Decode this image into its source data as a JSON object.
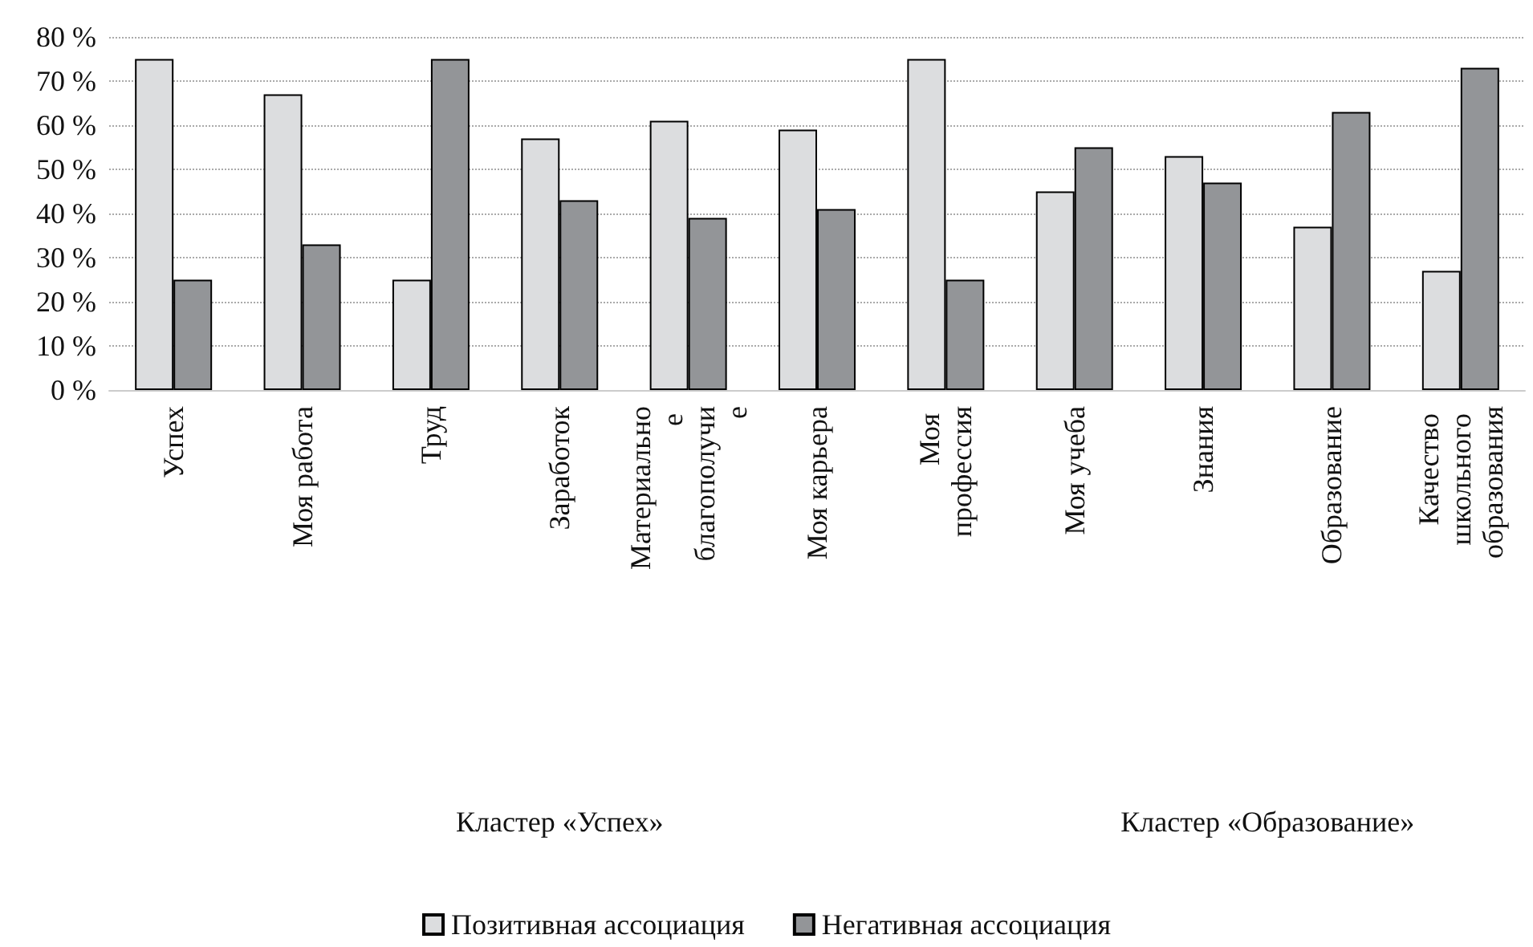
{
  "chart_data": {
    "type": "bar",
    "categories": [
      "Успех",
      "Моя работа",
      "Труд",
      "Заработок",
      "Материальное благополучие",
      "Моя карьера",
      "Моя профессия",
      "Моя учеба",
      "Знания",
      "Образование",
      "Качество школьного образования"
    ],
    "series": [
      {
        "name": "Позитивная ассоциация",
        "color": "#dcdddf",
        "values": [
          75,
          67,
          25,
          57,
          61,
          59,
          75,
          45,
          53,
          37,
          27
        ]
      },
      {
        "name": "Негативная ассоциация",
        "color": "#939598",
        "values": [
          25,
          33,
          75,
          43,
          39,
          41,
          25,
          55,
          47,
          63,
          73
        ]
      }
    ],
    "ylim": [
      0,
      80
    ],
    "yticks": [
      {
        "value": 0,
        "label": "0 %"
      },
      {
        "value": 10,
        "label": "10 %"
      },
      {
        "value": 20,
        "label": "20 %"
      },
      {
        "value": 30,
        "label": "30 %"
      },
      {
        "value": 40,
        "label": "40 %"
      },
      {
        "value": 50,
        "label": "50 %"
      },
      {
        "value": 60,
        "label": "60 %"
      },
      {
        "value": 70,
        "label": "70 %"
      },
      {
        "value": 80,
        "label": "80 %"
      }
    ],
    "annotations": [
      "Кластер «Успех»",
      "Кластер «Образование»"
    ],
    "grid": "y",
    "legend": "bottom"
  }
}
